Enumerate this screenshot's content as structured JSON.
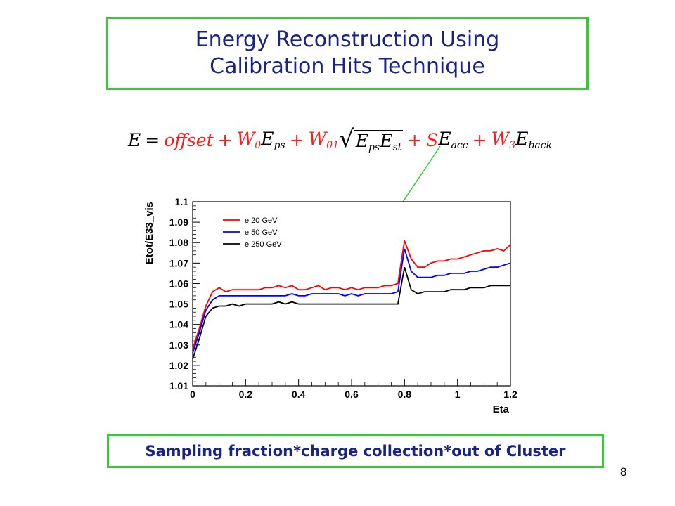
{
  "slide": {
    "title_line1": "Energy Reconstruction Using",
    "title_line2": "Calibration Hits Technique",
    "footer": "Sampling fraction*charge collection*out of Cluster",
    "page_number": "8"
  },
  "formula": {
    "E": "E",
    "eq": "=",
    "offset": "offset",
    "plus": "+",
    "W0": "W",
    "W0_sub": "0",
    "Eps": "E",
    "Eps_sub": "ps",
    "W01": "W",
    "W01_sub": "01",
    "sqrt_E1": "E",
    "sqrt_E1_sub": "ps",
    "sqrt_E2": "E",
    "sqrt_E2_sub": "st",
    "S": "S",
    "Eacc": "E",
    "Eacc_sub": "acc",
    "W3": "W",
    "W3_sub": "3",
    "Eback": "E",
    "Eback_sub": "back"
  },
  "colors": {
    "box_border": "#33cc33",
    "title_text": "#1a237e",
    "arrow": "#33cc33",
    "formula_red": "#ff1a1a"
  },
  "chart_data": {
    "type": "line",
    "xlabel": "Eta",
    "ylabel": "Etot/E33_vis",
    "xlim": [
      0,
      1.2
    ],
    "ylim": [
      1.01,
      1.1
    ],
    "xticks": [
      "0",
      "0.2",
      "0.4",
      "0.6",
      "0.8",
      "1",
      "1.2"
    ],
    "yticks": [
      "1.01",
      "1.02",
      "1.03",
      "1.04",
      "1.05",
      "1.06",
      "1.07",
      "1.08",
      "1.09",
      "1.1"
    ],
    "legend": "top-left",
    "grid": false,
    "x": [
      0.0,
      0.025,
      0.05,
      0.075,
      0.1,
      0.125,
      0.15,
      0.175,
      0.2,
      0.225,
      0.25,
      0.275,
      0.3,
      0.325,
      0.35,
      0.375,
      0.4,
      0.425,
      0.45,
      0.475,
      0.5,
      0.525,
      0.55,
      0.575,
      0.6,
      0.625,
      0.65,
      0.675,
      0.7,
      0.725,
      0.75,
      0.775,
      0.8,
      0.825,
      0.85,
      0.875,
      0.9,
      0.925,
      0.95,
      0.975,
      1.0,
      1.025,
      1.05,
      1.075,
      1.1,
      1.125,
      1.15,
      1.175,
      1.2
    ],
    "series": [
      {
        "name": "e 20 GeV",
        "color": "#ff0000",
        "values": [
          1.028,
          1.038,
          1.049,
          1.056,
          1.058,
          1.056,
          1.057,
          1.057,
          1.057,
          1.057,
          1.057,
          1.058,
          1.058,
          1.059,
          1.058,
          1.059,
          1.057,
          1.057,
          1.058,
          1.059,
          1.057,
          1.058,
          1.058,
          1.057,
          1.058,
          1.057,
          1.058,
          1.058,
          1.058,
          1.059,
          1.059,
          1.06,
          1.081,
          1.072,
          1.068,
          1.068,
          1.07,
          1.071,
          1.071,
          1.072,
          1.072,
          1.073,
          1.074,
          1.075,
          1.076,
          1.076,
          1.077,
          1.076,
          1.079
        ]
      },
      {
        "name": "e 50 GeV",
        "color": "#0000ff",
        "values": [
          1.026,
          1.036,
          1.047,
          1.052,
          1.054,
          1.054,
          1.054,
          1.054,
          1.054,
          1.054,
          1.054,
          1.054,
          1.054,
          1.054,
          1.054,
          1.055,
          1.054,
          1.054,
          1.055,
          1.055,
          1.055,
          1.055,
          1.055,
          1.054,
          1.055,
          1.054,
          1.055,
          1.055,
          1.055,
          1.055,
          1.055,
          1.056,
          1.077,
          1.066,
          1.063,
          1.063,
          1.063,
          1.064,
          1.064,
          1.065,
          1.065,
          1.065,
          1.066,
          1.066,
          1.067,
          1.068,
          1.068,
          1.069,
          1.07
        ]
      },
      {
        "name": "e 250 GeV",
        "color": "#000000",
        "values": [
          1.023,
          1.033,
          1.044,
          1.048,
          1.049,
          1.049,
          1.05,
          1.049,
          1.05,
          1.05,
          1.05,
          1.05,
          1.05,
          1.051,
          1.05,
          1.051,
          1.05,
          1.05,
          1.05,
          1.05,
          1.05,
          1.05,
          1.05,
          1.05,
          1.05,
          1.05,
          1.05,
          1.05,
          1.05,
          1.05,
          1.05,
          1.05,
          1.068,
          1.057,
          1.055,
          1.056,
          1.056,
          1.056,
          1.056,
          1.057,
          1.057,
          1.057,
          1.058,
          1.058,
          1.058,
          1.059,
          1.059,
          1.059,
          1.059
        ]
      }
    ]
  }
}
